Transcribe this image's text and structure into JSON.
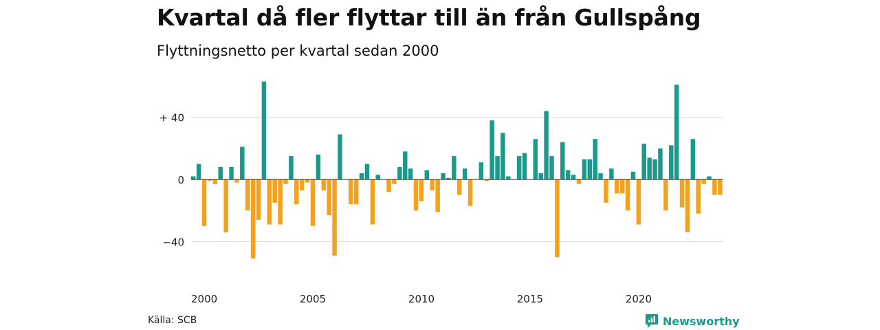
{
  "title": "Kvartal då fler flyttar till än från Gullspång",
  "subtitle": "Flyttningsnetto per kvartal sedan 2000",
  "source": "Källa: SCB",
  "brand": {
    "name": "Newsworthy",
    "icon": "newsworthy-logo-icon"
  },
  "colors": {
    "positive": "#1a9a8a",
    "negative": "#f5a11c",
    "grid": "#d9d9d9",
    "zero_line": "#222222"
  },
  "chart_data": {
    "type": "bar",
    "title": "Kvartal då fler flyttar till än från Gullspång",
    "subtitle": "Flyttningsnetto per kvartal sedan 2000",
    "xlabel": "",
    "ylabel": "",
    "ylim": [
      -64,
      64
    ],
    "yticks": [
      40,
      0,
      -40
    ],
    "ytick_labels": [
      "+ 40",
      "0",
      "−40"
    ],
    "xticks": [
      2000,
      2005,
      2010,
      2015,
      2020
    ],
    "xtick_labels": [
      "2000",
      "2005",
      "2010",
      "2015",
      "2020"
    ],
    "grid": true,
    "start_year": 2000,
    "values": [
      2,
      10,
      -30,
      -1,
      -3,
      8,
      -34,
      8,
      -2,
      21,
      -20,
      -51,
      -26,
      63,
      -29,
      -15,
      -29,
      -3,
      15,
      -16,
      -7,
      -2,
      -30,
      16,
      -7,
      -23,
      -49,
      29,
      0,
      -16,
      -16,
      4,
      10,
      -29,
      3,
      0,
      -8,
      -3,
      8,
      18,
      7,
      -20,
      -14,
      6,
      -7,
      -21,
      4,
      1,
      15,
      -10,
      7,
      -17,
      0,
      11,
      -1,
      38,
      15,
      30,
      2,
      0,
      15,
      17,
      0,
      26,
      4,
      44,
      15,
      -50,
      24,
      6,
      3,
      -3,
      13,
      13,
      26,
      4,
      -15,
      7,
      -9,
      -9,
      -20,
      5,
      -29,
      23,
      14,
      13,
      20,
      -20,
      22,
      61,
      -18,
      -34,
      26,
      -22,
      -3,
      2,
      -10,
      -10
    ]
  }
}
